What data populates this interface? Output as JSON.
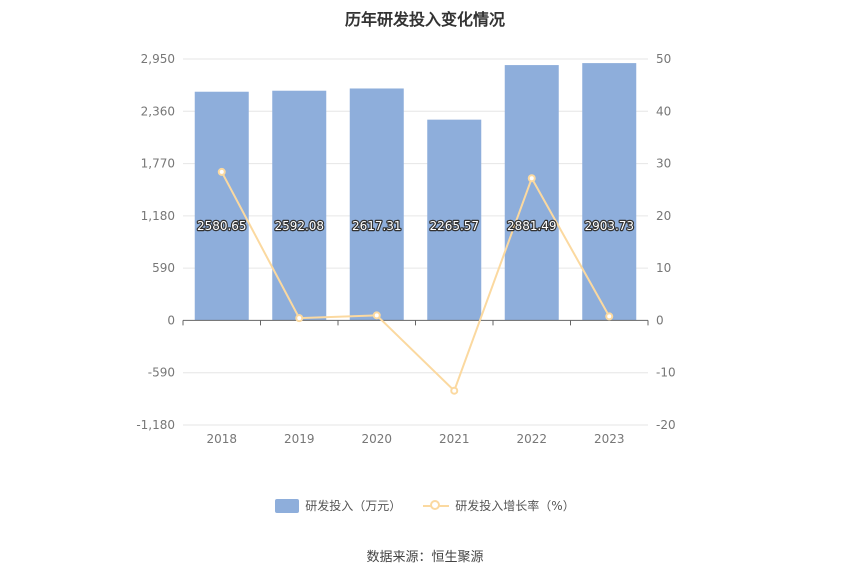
{
  "chart_data": {
    "type": "bar",
    "title": "历年研发投入变化情况",
    "categories": [
      "2018",
      "2019",
      "2020",
      "2021",
      "2022",
      "2023"
    ],
    "series": [
      {
        "name": "研发投入（万元）",
        "type": "bar",
        "axis": "left",
        "values": [
          2580.65,
          2592.08,
          2617.31,
          2265.57,
          2881.49,
          2903.73
        ],
        "labels": [
          "2580.65",
          "2592.08",
          "2617.31",
          "2265.57",
          "2881.49",
          "2903.73"
        ],
        "color": "#8eaedb"
      },
      {
        "name": "研发投入增长率（%）",
        "type": "line",
        "axis": "right",
        "values": [
          28.4,
          0.44,
          0.97,
          -13.44,
          27.19,
          0.77
        ],
        "color": "#fbd9a0"
      }
    ],
    "y_left": {
      "min": -1180,
      "max": 2950,
      "ticks": [
        2950,
        2360,
        1770,
        1180,
        590,
        0,
        -590,
        -1180
      ],
      "tick_labels": [
        "2,950",
        "2,360",
        "1,770",
        "1,180",
        "590",
        "0",
        "-590",
        "-1,180"
      ]
    },
    "y_right": {
      "min": -20,
      "max": 50,
      "ticks": [
        50,
        40,
        30,
        20,
        10,
        0,
        -10,
        -20
      ],
      "tick_labels": [
        "50",
        "40",
        "30",
        "20",
        "10",
        "0",
        "-10",
        "-20"
      ]
    },
    "grid": true,
    "legend_position": "bottom",
    "source": "数据来源：恒生聚源"
  }
}
